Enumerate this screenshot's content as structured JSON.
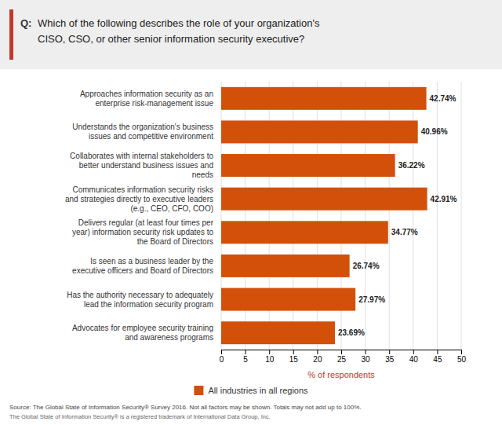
{
  "chart_data": {
    "type": "bar",
    "orientation": "horizontal",
    "title": "Which of the following describes the role of your organization's\nCISO, CSO, or other senior information security executive?",
    "annotations": [
      "Q:",
      "Source: The Global State of Information Security® Survey 2016. Not all factors may be shown. Totals may not add up to 100%.",
      "The Global State of Information Security® is a registered trademark of International Data Group, Inc."
    ],
    "categories": [
      "Approaches information security as an\nenterprise risk-management issue",
      "Understands the organization's business\nissues and competitive environment",
      "Collaborates with internal stakeholders to\nbetter understand business issues and\nneeds",
      "Communicates information security risks\nand strategies directly to executive leaders\n(e.g., CEO, CFO, COO)",
      "Delivers regular (at least four times per\nyear) information security risk updates to\nthe Board of Directors",
      "Is seen as a business leader by the\nexecutive officers and Board of Directors",
      "Has the authority necessary to adequately\nlead the information security program",
      "Advocates for employee security training\nand awareness programs"
    ],
    "series": [
      {
        "name": "All industries in all regions",
        "color": "#D2500A",
        "values": [
          42.74,
          40.96,
          36.22,
          42.91,
          34.77,
          26.74,
          27.97,
          23.69
        ],
        "value_labels": [
          "42.74%",
          "40.96%",
          "36.22%",
          "42.91%",
          "34.77%",
          "26.74%",
          "27.97%",
          "23.69%"
        ]
      }
    ],
    "xlabel": "% of respondents",
    "xlim": [
      0,
      50
    ],
    "xticks": [
      0,
      5,
      10,
      15,
      20,
      25,
      30,
      35,
      40,
      45,
      50
    ],
    "grid": true,
    "data_labels": true,
    "legend": "bottom"
  }
}
